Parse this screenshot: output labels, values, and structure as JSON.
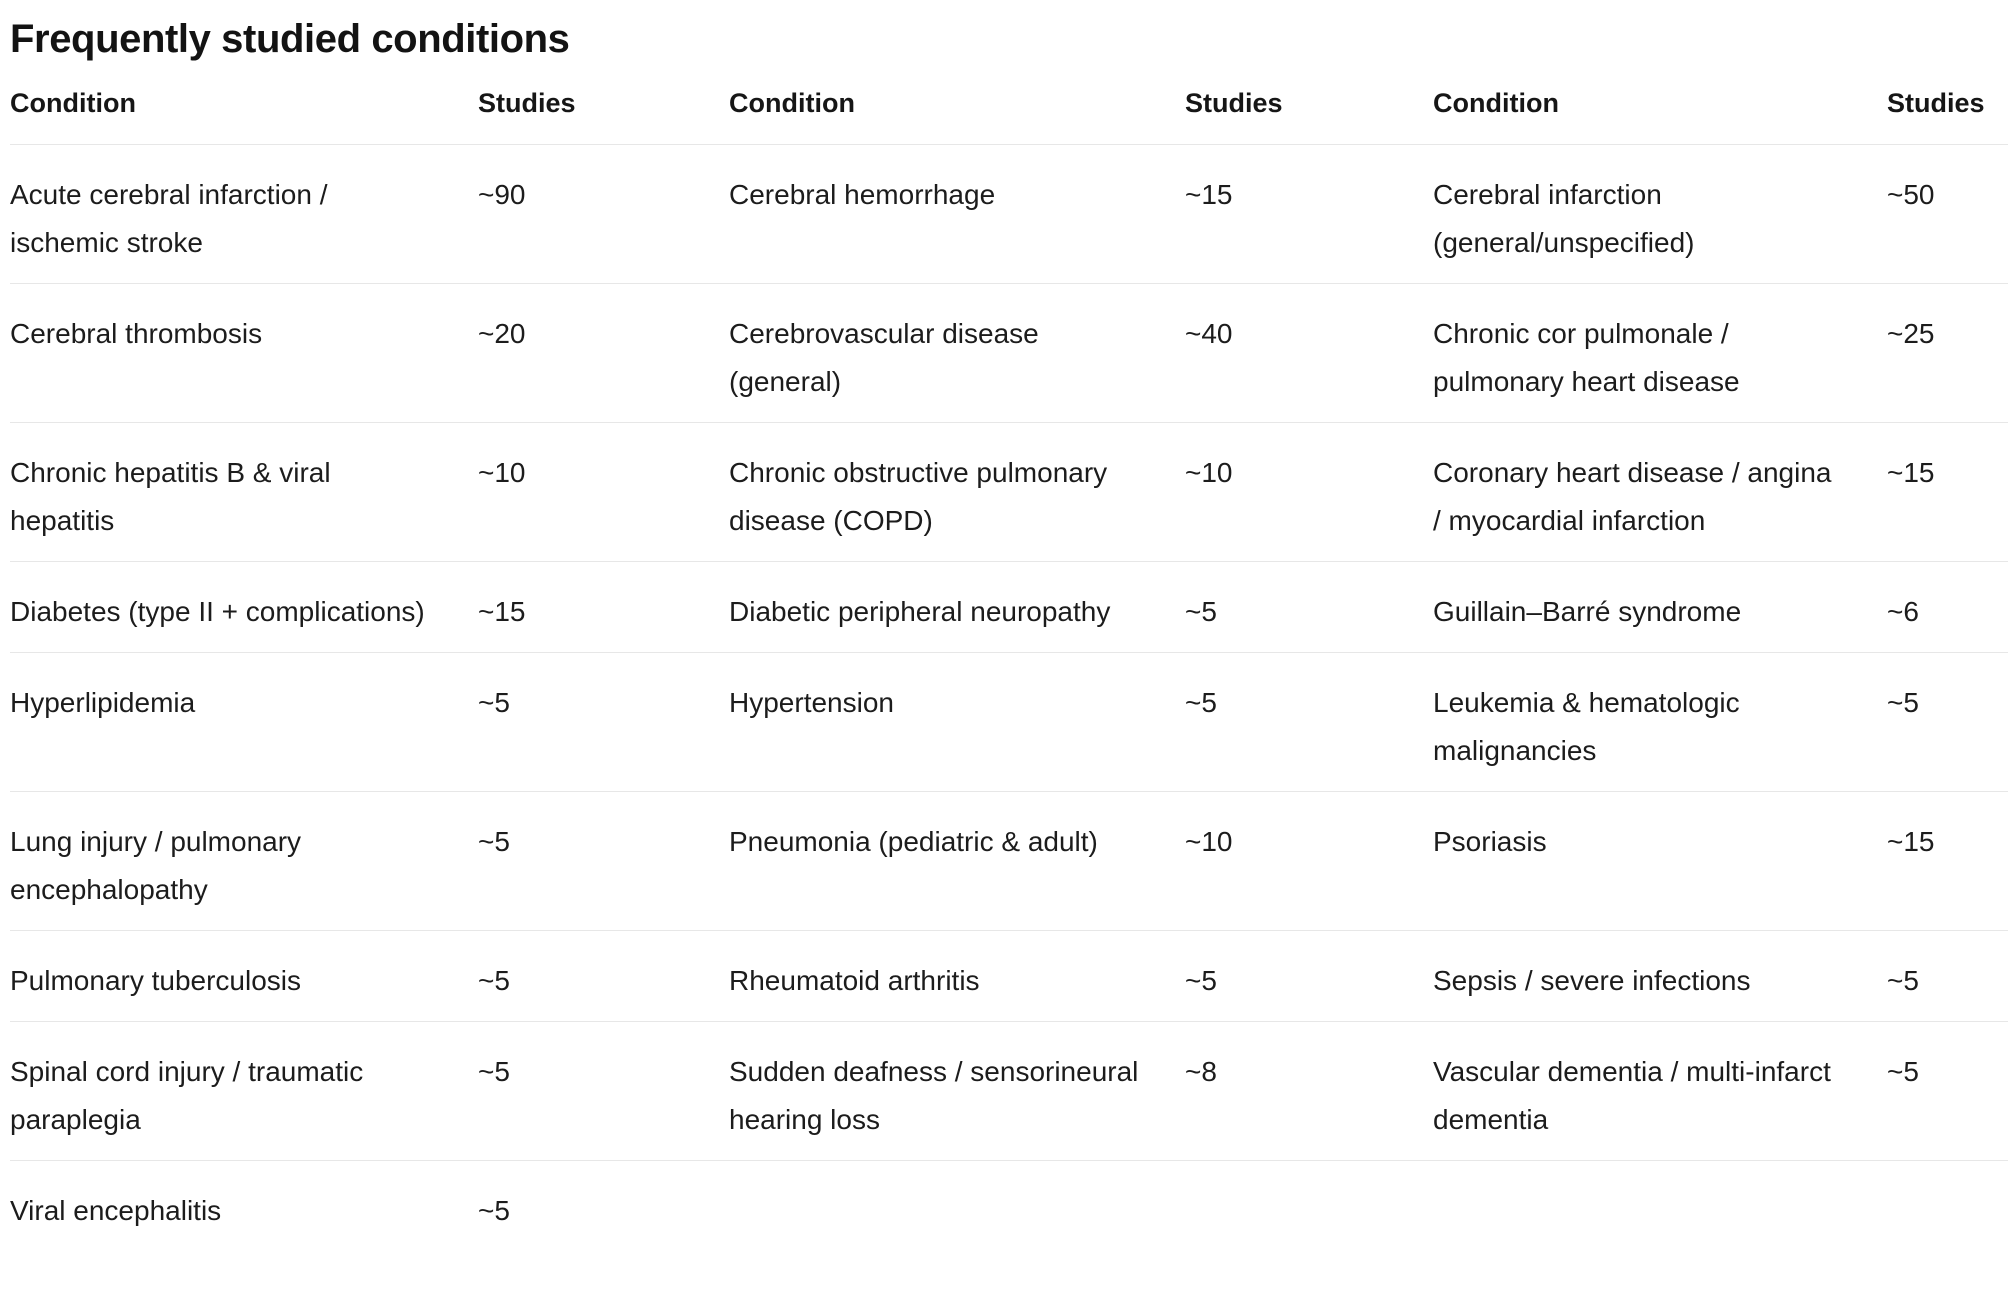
{
  "title": "Frequently studied conditions",
  "colors": {
    "text": "#1c1c1c",
    "heading": "#131313",
    "divider": "#e7e7e7",
    "background": "#ffffff"
  },
  "table": {
    "headers": [
      "Condition",
      "Studies",
      "Condition",
      "Studies",
      "Condition",
      "Studies"
    ],
    "rows": [
      [
        "Acute cerebral infarction / ischemic stroke",
        "~90",
        "Cerebral hemorrhage",
        "~15",
        "Cerebral infarction (general/unspecified)",
        "~50"
      ],
      [
        "Cerebral thrombosis",
        "~20",
        "Cerebrovascular disease (general)",
        "~40",
        "Chronic cor pulmonale / pulmonary heart disease",
        "~25"
      ],
      [
        "Chronic hepatitis B & viral hepatitis",
        "~10",
        "Chronic obstructive pulmonary disease (COPD)",
        "~10",
        "Coronary heart disease / angina / myocardial infarction",
        "~15"
      ],
      [
        "Diabetes (type II + complications)",
        "~15",
        "Diabetic peripheral neuropathy",
        "~5",
        "Guillain–Barré syndrome",
        "~6"
      ],
      [
        "Hyperlipidemia",
        "~5",
        "Hypertension",
        "~5",
        "Leukemia & hematologic malignancies",
        "~5"
      ],
      [
        "Lung injury / pulmonary encephalopathy",
        "~5",
        "Pneumonia (pediatric & adult)",
        "~10",
        "Psoriasis",
        "~15"
      ],
      [
        "Pulmonary tuberculosis",
        "~5",
        "Rheumatoid arthritis",
        "~5",
        "Sepsis / severe infections",
        "~5"
      ],
      [
        "Spinal cord injury / traumatic paraplegia",
        "~5",
        "Sudden deafness / sensorineural hearing loss",
        "~8",
        "Vascular dementia / multi-infarct dementia",
        "~5"
      ],
      [
        "Viral encephalitis",
        "~5",
        "",
        "",
        "",
        ""
      ]
    ]
  }
}
